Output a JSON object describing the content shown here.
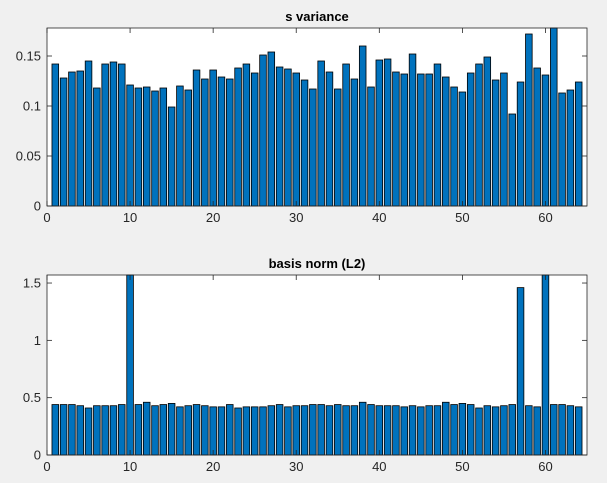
{
  "colors": {
    "figure_bg": "#f0f0f0",
    "axes_bg": "#ffffff",
    "bar_fill": "#0072bd",
    "bar_edge": "#000000",
    "axis_line": "#262626",
    "text": "#262626"
  },
  "chart_data": [
    {
      "type": "bar",
      "title": "s variance",
      "xlabel": "",
      "ylabel": "",
      "xlim": [
        0,
        65
      ],
      "ylim": [
        0,
        0.178
      ],
      "xticks": [
        0,
        10,
        20,
        30,
        40,
        50,
        60
      ],
      "yticks": [
        0,
        0.05,
        0.1,
        0.15
      ],
      "ytick_labels": [
        "0",
        "0.05",
        "0.1",
        "0.15"
      ],
      "grid": false,
      "x": [
        1,
        2,
        3,
        4,
        5,
        6,
        7,
        8,
        9,
        10,
        11,
        12,
        13,
        14,
        15,
        16,
        17,
        18,
        19,
        20,
        21,
        22,
        23,
        24,
        25,
        26,
        27,
        28,
        29,
        30,
        31,
        32,
        33,
        34,
        35,
        36,
        37,
        38,
        39,
        40,
        41,
        42,
        43,
        44,
        45,
        46,
        47,
        48,
        49,
        50,
        51,
        52,
        53,
        54,
        55,
        56,
        57,
        58,
        59,
        60,
        61,
        62,
        63,
        64
      ],
      "values": [
        0.142,
        0.128,
        0.134,
        0.135,
        0.145,
        0.118,
        0.142,
        0.144,
        0.142,
        0.121,
        0.118,
        0.119,
        0.115,
        0.118,
        0.099,
        0.12,
        0.116,
        0.136,
        0.127,
        0.136,
        0.129,
        0.127,
        0.138,
        0.142,
        0.133,
        0.151,
        0.154,
        0.139,
        0.137,
        0.133,
        0.126,
        0.117,
        0.145,
        0.134,
        0.117,
        0.142,
        0.127,
        0.16,
        0.119,
        0.146,
        0.147,
        0.134,
        0.132,
        0.152,
        0.132,
        0.132,
        0.142,
        0.129,
        0.119,
        0.114,
        0.133,
        0.142,
        0.149,
        0.126,
        0.133,
        0.092,
        0.124,
        0.172,
        0.138,
        0.131,
        0.178,
        0.113,
        0.116,
        0.124
      ]
    },
    {
      "type": "bar",
      "title": "basis norm (L2)",
      "xlabel": "",
      "ylabel": "",
      "xlim": [
        0,
        65
      ],
      "ylim": [
        0,
        1.57
      ],
      "xticks": [
        0,
        10,
        20,
        30,
        40,
        50,
        60
      ],
      "yticks": [
        0,
        0.5,
        1,
        1.5
      ],
      "ytick_labels": [
        "0",
        "0.5",
        "1",
        "1.5"
      ],
      "grid": false,
      "x": [
        1,
        2,
        3,
        4,
        5,
        6,
        7,
        8,
        9,
        10,
        11,
        12,
        13,
        14,
        15,
        16,
        17,
        18,
        19,
        20,
        21,
        22,
        23,
        24,
        25,
        26,
        27,
        28,
        29,
        30,
        31,
        32,
        33,
        34,
        35,
        36,
        37,
        38,
        39,
        40,
        41,
        42,
        43,
        44,
        45,
        46,
        47,
        48,
        49,
        50,
        51,
        52,
        53,
        54,
        55,
        56,
        57,
        58,
        59,
        60,
        61,
        62,
        63,
        64
      ],
      "values": [
        0.44,
        0.44,
        0.44,
        0.43,
        0.41,
        0.43,
        0.43,
        0.43,
        0.44,
        1.57,
        0.44,
        0.46,
        0.43,
        0.44,
        0.45,
        0.42,
        0.43,
        0.44,
        0.43,
        0.42,
        0.42,
        0.44,
        0.41,
        0.42,
        0.42,
        0.42,
        0.43,
        0.44,
        0.42,
        0.43,
        0.43,
        0.44,
        0.44,
        0.43,
        0.44,
        0.43,
        0.43,
        0.46,
        0.44,
        0.43,
        0.43,
        0.43,
        0.42,
        0.43,
        0.42,
        0.43,
        0.43,
        0.46,
        0.44,
        0.45,
        0.44,
        0.41,
        0.43,
        0.42,
        0.43,
        0.44,
        1.46,
        0.43,
        0.42,
        1.57,
        0.44,
        0.44,
        0.43,
        0.42
      ]
    }
  ]
}
